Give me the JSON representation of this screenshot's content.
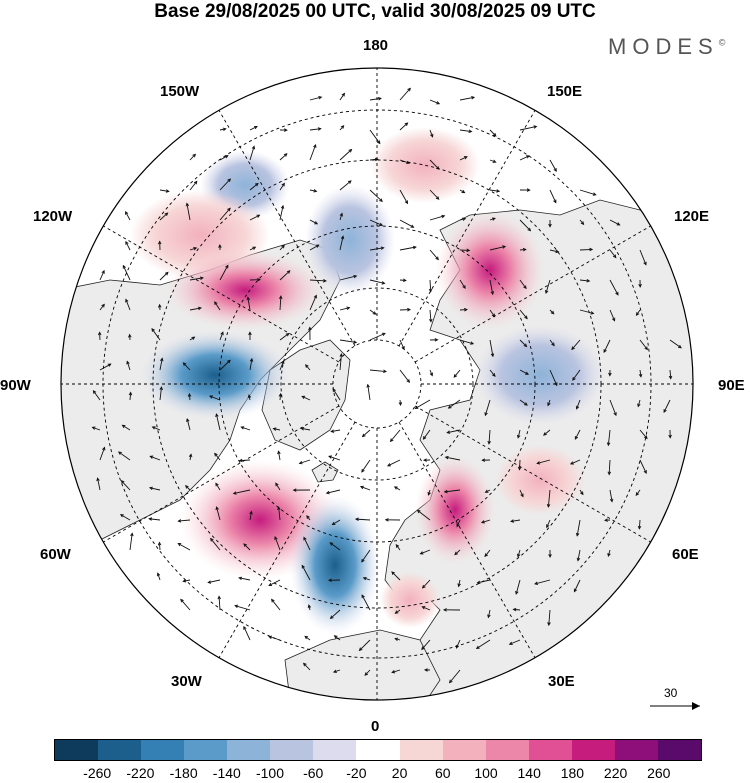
{
  "title": "Base 29/08/2025 00 UTC, valid 30/08/2025 09 UTC",
  "brand": "MODES",
  "brand_mark": "©",
  "longitude_labels": {
    "top": "180",
    "bottom": "0",
    "left": "90W",
    "right": "90E",
    "upper_left": "150W",
    "upper_right": "150E",
    "mid_left": "120W",
    "mid_right": "120E",
    "lower_left": "60W",
    "lower_right": "60E",
    "bottom_left": "30W",
    "bottom_right": "30E"
  },
  "reference_vector": {
    "label": "30"
  },
  "colorbar": {
    "colors": [
      "#0e3a5c",
      "#1c5f8c",
      "#3480b5",
      "#5a9bc9",
      "#8eb3d9",
      "#b9c4e0",
      "#dcdcee",
      "#ffffff",
      "#f7d6d6",
      "#f2b1bd",
      "#ec87aa",
      "#e14f95",
      "#c51c7e",
      "#8e0f7a",
      "#5a0a6b"
    ],
    "ticks": [
      "-260",
      "-220",
      "-180",
      "-140",
      "-100",
      "-60",
      "-20",
      "20",
      "60",
      "100",
      "140",
      "180",
      "220",
      "260"
    ]
  },
  "colors": {
    "land": "#ececec",
    "ocean": "#ffffff",
    "coast": "#222222",
    "grid": "#000000"
  },
  "anomalies": [
    {
      "name": "low-alaska",
      "value": -120
    },
    {
      "name": "high-bering",
      "value": 60
    },
    {
      "name": "high-pacific-west",
      "value": 100
    },
    {
      "name": "high-northpacific",
      "value": 180
    },
    {
      "name": "low-hudson",
      "value": -220
    },
    {
      "name": "high-east-siberia",
      "value": 160
    },
    {
      "name": "high-north-atlantic",
      "value": 160
    },
    {
      "name": "low-atlantic",
      "value": -200
    },
    {
      "name": "high-scandinavia",
      "value": 180
    },
    {
      "name": "low-central-siberia",
      "value": -80
    },
    {
      "name": "low-arctic",
      "value": -60
    },
    {
      "name": "high-mediterranean",
      "value": 60
    }
  ]
}
